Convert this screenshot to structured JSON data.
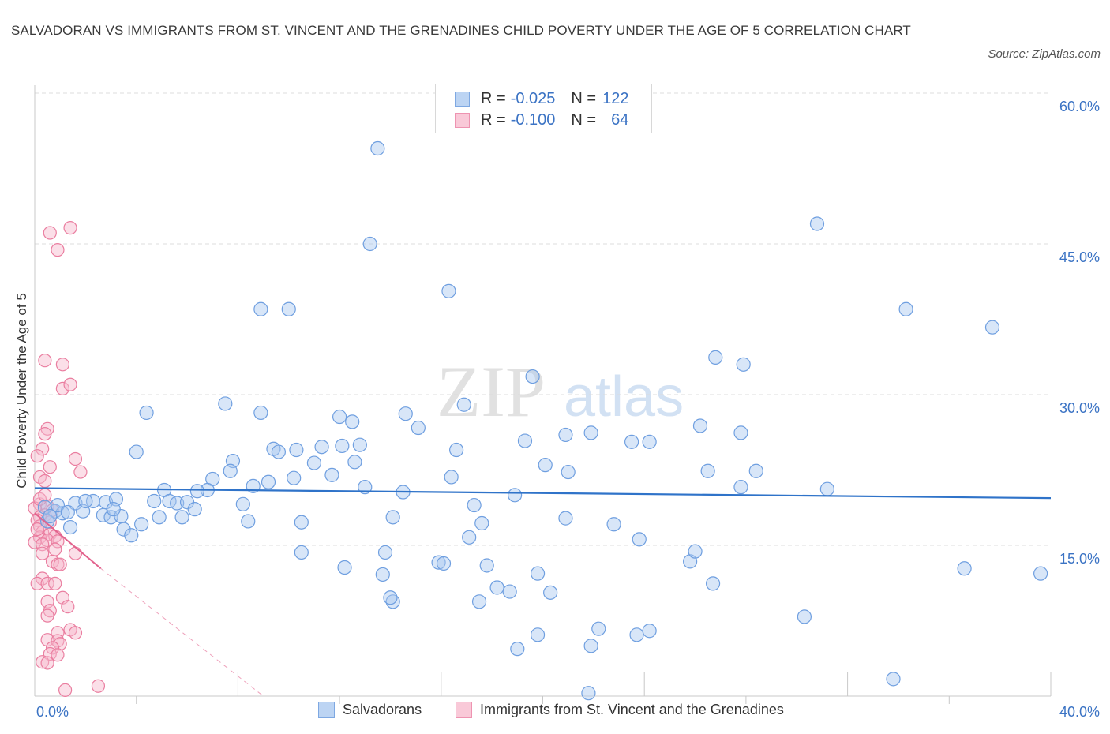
{
  "title": "SALVADORAN VS IMMIGRANTS FROM ST. VINCENT AND THE GRENADINES CHILD POVERTY UNDER THE AGE OF 5 CORRELATION CHART",
  "source": "Source: ZipAtlas.com",
  "watermark": {
    "zip": "ZIP",
    "atlas": "atlas"
  },
  "legend": {
    "rows": [
      {
        "r_label": "R = ",
        "r_value": "-0.025",
        "n_label": "N = ",
        "n_value": "122"
      },
      {
        "r_label": "R = ",
        "r_value": "-0.100",
        "n_label": "N = ",
        "n_value": "64"
      }
    ]
  },
  "bottom_legend": [
    "Salvadorans",
    "Immigrants from St. Vincent and the Grenadines"
  ],
  "colors": {
    "blue_fill": "#a9c8f0",
    "blue_stroke": "#6f9fe0",
    "blue_line": "#2f73c9",
    "pink_fill": "#f6b8cc",
    "pink_stroke": "#ea7ea0",
    "pink_line": "#e2628d",
    "axis_text": "#3b73c4",
    "grid": "#dcdcdc"
  },
  "chart_data": {
    "type": "scatter",
    "title": "SALVADORAN VS IMMIGRANTS FROM ST. VINCENT AND THE GRENADINES CHILD POVERTY UNDER THE AGE OF 5 CORRELATION CHART",
    "xlabel": "",
    "ylabel": "Child Poverty Under the Age of 5",
    "xlim": [
      0,
      40
    ],
    "ylim": [
      0,
      60
    ],
    "x_tick_labels": [
      "0.0%",
      "40.0%"
    ],
    "y_ticks": [
      15,
      30,
      45,
      60
    ],
    "y_tick_labels": [
      "15.0%",
      "30.0%",
      "45.0%",
      "60.0%"
    ],
    "grid": true,
    "legend_position": "top-center",
    "series": [
      {
        "name": "Salvadorans",
        "r": -0.025,
        "n": 122,
        "trend": {
          "x": [
            0,
            40
          ],
          "y": [
            20.7,
            19.7
          ]
        },
        "points": [
          [
            13.5,
            54.5
          ],
          [
            13.2,
            45
          ],
          [
            16.3,
            40.3
          ],
          [
            8.9,
            38.5
          ],
          [
            10,
            38.5
          ],
          [
            30.8,
            47
          ],
          [
            34.3,
            38.5
          ],
          [
            37.7,
            36.7
          ],
          [
            26.8,
            33.7
          ],
          [
            27.9,
            33
          ],
          [
            19.6,
            31.8
          ],
          [
            16.9,
            29
          ],
          [
            7.5,
            29.1
          ],
          [
            4.4,
            28.2
          ],
          [
            8.9,
            28.2
          ],
          [
            12,
            27.8
          ],
          [
            14.6,
            28.1
          ],
          [
            15.1,
            26.7
          ],
          [
            12.5,
            27.3
          ],
          [
            20.9,
            26
          ],
          [
            21.9,
            26.2
          ],
          [
            26.2,
            26.9
          ],
          [
            27.8,
            26.2
          ],
          [
            23.5,
            25.3
          ],
          [
            24.2,
            25.3
          ],
          [
            19.3,
            25.4
          ],
          [
            4.0,
            24.3
          ],
          [
            9.4,
            24.6
          ],
          [
            9.6,
            24.3
          ],
          [
            10.3,
            24.5
          ],
          [
            11.3,
            24.8
          ],
          [
            12.1,
            24.9
          ],
          [
            12.8,
            25
          ],
          [
            16.6,
            24.5
          ],
          [
            7.8,
            23.4
          ],
          [
            11,
            23.2
          ],
          [
            12.6,
            23.3
          ],
          [
            20.1,
            23
          ],
          [
            26.5,
            22.4
          ],
          [
            28.4,
            22.4
          ],
          [
            7.7,
            22.4
          ],
          [
            7.0,
            21.6
          ],
          [
            10.2,
            21.7
          ],
          [
            11.7,
            22
          ],
          [
            21.0,
            22.3
          ],
          [
            16.4,
            21.8
          ],
          [
            6.8,
            20.5
          ],
          [
            8.6,
            20.9
          ],
          [
            9.2,
            21.3
          ],
          [
            13.0,
            20.8
          ],
          [
            14.5,
            20.3
          ],
          [
            18.9,
            20
          ],
          [
            27.8,
            20.8
          ],
          [
            31.2,
            20.6
          ],
          [
            5.1,
            20.5
          ],
          [
            6.4,
            20.4
          ],
          [
            2.3,
            19.4
          ],
          [
            2.8,
            19.3
          ],
          [
            3.2,
            19.6
          ],
          [
            4.7,
            19.4
          ],
          [
            5.3,
            19.4
          ],
          [
            5.6,
            19.2
          ],
          [
            6.0,
            19.3
          ],
          [
            8.2,
            19.1
          ],
          [
            17.3,
            19.0
          ],
          [
            1.6,
            19.2
          ],
          [
            1.9,
            18.4
          ],
          [
            2.7,
            18.0
          ],
          [
            3.0,
            17.8
          ],
          [
            3.4,
            17.9
          ],
          [
            3.1,
            18.6
          ],
          [
            6.3,
            18.6
          ],
          [
            5.8,
            17.8
          ],
          [
            4.9,
            17.8
          ],
          [
            8.4,
            17.4
          ],
          [
            10.5,
            17.3
          ],
          [
            14.1,
            17.8
          ],
          [
            17.6,
            17.2
          ],
          [
            20.9,
            17.7
          ],
          [
            22.8,
            17.1
          ],
          [
            0.8,
            18.4
          ],
          [
            0.4,
            18.8
          ],
          [
            0.5,
            17.4
          ],
          [
            1.1,
            18.2
          ],
          [
            1.4,
            16.8
          ],
          [
            3.5,
            16.6
          ],
          [
            3.8,
            16.0
          ],
          [
            4.2,
            17.1
          ],
          [
            17.1,
            15.8
          ],
          [
            23.8,
            15.6
          ],
          [
            10.5,
            14.3
          ],
          [
            13.8,
            14.3
          ],
          [
            15.9,
            13.3
          ],
          [
            16.1,
            13.2
          ],
          [
            17.8,
            13.0
          ],
          [
            12.2,
            12.8
          ],
          [
            13.7,
            12.1
          ],
          [
            19.8,
            12.2
          ],
          [
            25.8,
            13.4
          ],
          [
            26.0,
            14.4
          ],
          [
            36.6,
            12.7
          ],
          [
            39.6,
            12.2
          ],
          [
            18.2,
            10.8
          ],
          [
            18.7,
            10.4
          ],
          [
            14.1,
            9.4
          ],
          [
            17.5,
            9.4
          ],
          [
            20.3,
            10.3
          ],
          [
            26.7,
            11.2
          ],
          [
            30.3,
            7.9
          ],
          [
            22.2,
            6.7
          ],
          [
            19.8,
            6.1
          ],
          [
            23.7,
            6.1
          ],
          [
            24.2,
            6.5
          ],
          [
            19.0,
            4.7
          ],
          [
            21.9,
            5.0
          ],
          [
            33.8,
            1.7
          ],
          [
            21.8,
            0.3
          ],
          [
            14.0,
            9.8
          ],
          [
            0.9,
            19.0
          ],
          [
            2.0,
            19.4
          ],
          [
            0.6,
            17.9
          ],
          [
            1.3,
            18.3
          ]
        ]
      },
      {
        "name": "Immigrants from St. Vincent and the Grenadines",
        "r": -0.1,
        "n": 64,
        "trend": {
          "x": [
            0,
            2.6
          ],
          "y": [
            18.2,
            12.7
          ]
        },
        "trend_extended": {
          "x": [
            2.6,
            9.0
          ],
          "y": [
            12.7,
            0
          ]
        },
        "points": [
          [
            1.4,
            46.6
          ],
          [
            0.6,
            46.1
          ],
          [
            0.9,
            44.4
          ],
          [
            0.4,
            33.4
          ],
          [
            1.1,
            33.0
          ],
          [
            1.1,
            30.6
          ],
          [
            1.4,
            31.0
          ],
          [
            0.5,
            26.6
          ],
          [
            0.4,
            26.1
          ],
          [
            0.3,
            24.6
          ],
          [
            0.1,
            23.9
          ],
          [
            1.6,
            23.6
          ],
          [
            0.6,
            22.8
          ],
          [
            1.8,
            22.3
          ],
          [
            0.2,
            21.8
          ],
          [
            0.4,
            21.4
          ],
          [
            0.2,
            19.1
          ],
          [
            0.5,
            18.9
          ],
          [
            0.0,
            18.7
          ],
          [
            0.7,
            18.5
          ],
          [
            0.4,
            18.0
          ],
          [
            0.2,
            17.8
          ],
          [
            0.1,
            17.5
          ],
          [
            0.6,
            17.3
          ],
          [
            0.2,
            16.9
          ],
          [
            0.3,
            16.3
          ],
          [
            0.6,
            16.1
          ],
          [
            0.8,
            15.9
          ],
          [
            0.2,
            15.8
          ],
          [
            0.5,
            15.5
          ],
          [
            0.0,
            15.3
          ],
          [
            0.3,
            15.1
          ],
          [
            0.9,
            15.4
          ],
          [
            0.8,
            14.6
          ],
          [
            0.3,
            14.2
          ],
          [
            1.6,
            14.2
          ],
          [
            0.7,
            13.4
          ],
          [
            0.9,
            13.1
          ],
          [
            1.0,
            13.1
          ],
          [
            0.3,
            11.7
          ],
          [
            0.1,
            11.2
          ],
          [
            0.5,
            11.2
          ],
          [
            0.8,
            11.2
          ],
          [
            1.1,
            9.8
          ],
          [
            0.5,
            9.4
          ],
          [
            1.3,
            8.9
          ],
          [
            0.6,
            8.5
          ],
          [
            0.5,
            8.0
          ],
          [
            1.4,
            6.6
          ],
          [
            1.6,
            6.3
          ],
          [
            0.9,
            6.3
          ],
          [
            0.5,
            5.6
          ],
          [
            0.9,
            5.5
          ],
          [
            1.0,
            5.2
          ],
          [
            0.7,
            4.8
          ],
          [
            0.6,
            4.2
          ],
          [
            0.9,
            4.1
          ],
          [
            0.3,
            3.4
          ],
          [
            0.5,
            3.3
          ],
          [
            1.2,
            0.6
          ],
          [
            2.5,
            1.0
          ],
          [
            0.2,
            19.6
          ],
          [
            0.4,
            20.0
          ],
          [
            0.1,
            16.6
          ]
        ]
      }
    ]
  }
}
